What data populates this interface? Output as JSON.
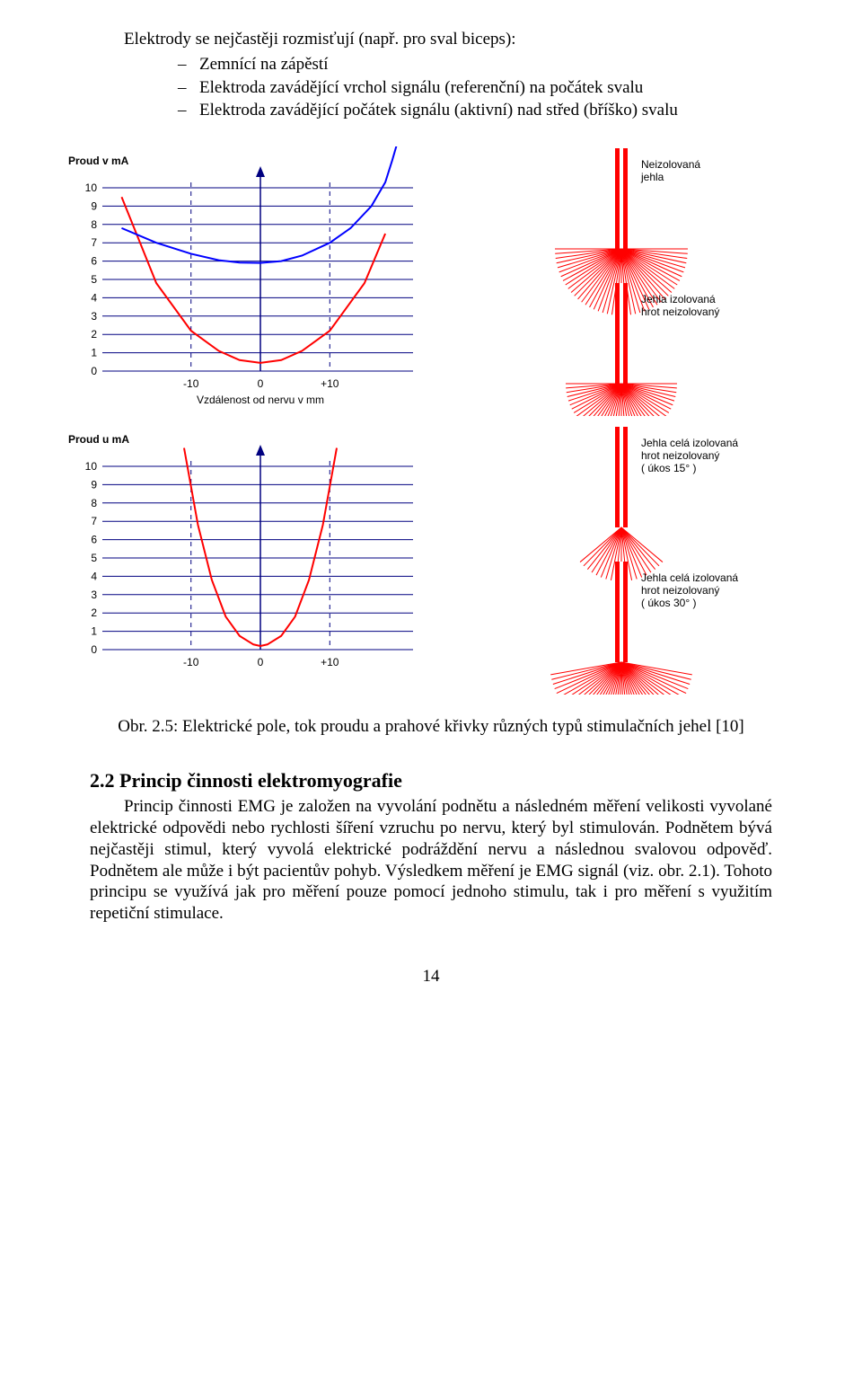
{
  "intro": "Elektrody se nejčastěji rozmisťují (např. pro sval biceps):",
  "bullets": [
    "Zemnící na zápěstí",
    "Elektroda zavádějící vrchol signálu (referenční) na počátek svalu",
    "Elektroda zavádějící počátek signálu (aktivní) nad střed (bříško) svalu"
  ],
  "caption": "Obr. 2.5: Elektrické pole, tok proudu a  prahové křivky různých typů stimulačních jehel [10]",
  "section_heading": "2.2 Princip činnosti elektromyografie",
  "paragraph": "Princip činnosti EMG je založen na vyvolání podnětu a následném měření velikosti vyvolané elektrické odpovědi nebo rychlosti šíření vzruchu po nervu, který byl stimulován. Podnětem bývá nejčastěji stimul, který vyvolá elektrické podráždění nervu a následnou svalovou odpověď. Podnětem ale může i být pacientův pohyb. Výsledkem měření je EMG signál (viz. obr. 2.1). Tohoto principu se využívá jak pro měření pouze pomocí jednoho stimulu, tak i pro měření s využitím repetiční stimulace.",
  "page_number": "14",
  "chart1": {
    "ylabel": "Proud v mA",
    "xlabel": "Vzdálenost od nervu v mm",
    "xticks": [
      "-10",
      "0",
      "+10"
    ],
    "yticks": [
      "0",
      "1",
      "2",
      "3",
      "4",
      "5",
      "6",
      "7",
      "8",
      "9",
      "10"
    ],
    "axis_color": "#000080",
    "grid_color": "#000080",
    "red_curve_color": "#ff0000",
    "blue_curve_color": "#0000ff",
    "background": "#ffffff",
    "red_points_x": [
      -20,
      -15,
      -10,
      -6,
      -3,
      0,
      3,
      6,
      10,
      15,
      18
    ],
    "red_points_y": [
      9.5,
      4.8,
      2.2,
      1.1,
      0.6,
      0.45,
      0.6,
      1.1,
      2.2,
      4.8,
      7.5
    ],
    "blue_points_x": [
      -20,
      -15,
      -10,
      -6,
      -3,
      0,
      3,
      6,
      10,
      13,
      16,
      18,
      19,
      20
    ],
    "blue_points_y": [
      7.8,
      7.0,
      6.4,
      6.05,
      5.92,
      5.9,
      6.0,
      6.3,
      7.0,
      7.8,
      9.0,
      10.3,
      11.5,
      12.8
    ]
  },
  "chart2": {
    "ylabel": "Proud u mA",
    "xticks": [
      "-10",
      "0",
      "+10"
    ],
    "yticks": [
      "0",
      "1",
      "2",
      "3",
      "4",
      "5",
      "6",
      "7",
      "8",
      "9",
      "10"
    ],
    "axis_color": "#000080",
    "grid_color": "#000080",
    "red_curve_color": "#ff0000",
    "background": "#ffffff",
    "red_points_x": [
      -11,
      -9,
      -7,
      -5,
      -3,
      -1,
      0,
      1,
      3,
      5,
      7,
      9,
      11
    ],
    "red_points_y": [
      11,
      6.8,
      3.8,
      1.8,
      0.75,
      0.28,
      0.2,
      0.28,
      0.75,
      1.8,
      3.8,
      6.8,
      11
    ]
  },
  "needles": [
    {
      "label_lines": [
        "Neizolovaná",
        "jehla"
      ],
      "spread": 180,
      "stick_color": "#ff0000",
      "ray_color": "#ff0000"
    },
    {
      "label_lines": [
        "Jehla izolovaná",
        "hrot neizolovaný"
      ],
      "spread": 180,
      "stick_color": "#ff0000",
      "ray_color": "#ff0000"
    },
    {
      "label_lines": [
        "Jehla celá izolovaná",
        "hrot neizolovaný",
        "( úkos 15° )"
      ],
      "spread": 100,
      "stick_color": "#ff0000",
      "ray_color": "#ff0000"
    },
    {
      "label_lines": [
        "Jehla celá izolovaná",
        "hrot neizolovaný",
        "( úkos 30° )"
      ],
      "spread": 160,
      "stick_color": "#ff0000",
      "ray_color": "#ff0000"
    }
  ]
}
